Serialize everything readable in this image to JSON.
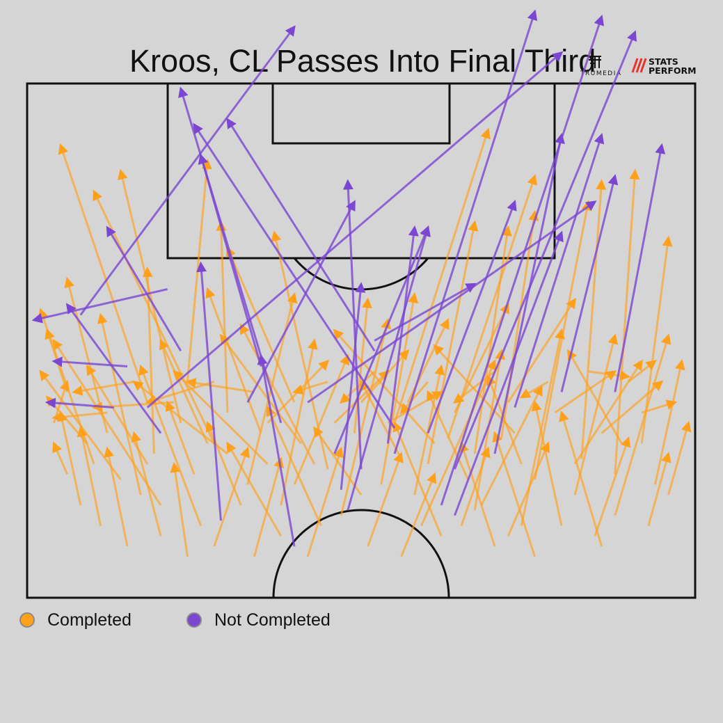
{
  "title": "Kroos, CL Passes Into Final Third",
  "logos": {
    "trumedia": "TRUMEDIA",
    "stats_perform_1": "STATS",
    "stats_perform_2": "PERFORM"
  },
  "colors": {
    "completed": "#ffa01a",
    "not_completed": "#7a46d2",
    "background": "#d5d5d5",
    "lines": "#111111"
  },
  "legend": [
    {
      "label": "Completed",
      "color": "#ffa01a"
    },
    {
      "label": "Not Completed",
      "color": "#7a46d2"
    }
  ],
  "chart_data": {
    "type": "scatter",
    "title": "Kroos, CL Passes Into Final Third",
    "pitch": "half-pitch, attacking half, vertical orientation",
    "series": [
      {
        "name": "Not Completed",
        "passes": [
          [
            18,
            63,
            80,
            -6
          ],
          [
            8,
            45,
            40,
            -11
          ],
          [
            20,
            68,
            6,
            43
          ],
          [
            33,
            62,
            49,
            23
          ],
          [
            42,
            62,
            85,
            23
          ],
          [
            38,
            66,
            23,
            1
          ],
          [
            55,
            72,
            76,
            -14
          ],
          [
            62,
            82,
            86,
            -13
          ],
          [
            64,
            75,
            91,
            -10
          ],
          [
            70,
            72,
            80,
            10
          ],
          [
            55,
            67,
            25,
            8
          ],
          [
            35,
            55,
            26,
            14
          ],
          [
            52,
            52,
            30,
            7
          ],
          [
            29,
            85,
            26,
            35
          ],
          [
            40,
            90,
            35,
            53
          ],
          [
            15,
            55,
            4,
            54
          ],
          [
            13,
            63,
            3,
            62
          ],
          [
            50,
            75,
            48,
            19
          ],
          [
            80,
            60,
            88,
            18
          ],
          [
            88,
            60,
            95,
            12
          ],
          [
            73,
            63,
            86,
            10
          ],
          [
            60,
            68,
            73,
            23
          ],
          [
            54,
            70,
            58,
            28
          ],
          [
            23,
            52,
            12,
            28
          ],
          [
            64,
            84,
            80,
            29
          ],
          [
            47,
            79,
            50,
            39
          ],
          [
            21,
            40,
            1,
            46
          ],
          [
            46,
            72,
            60,
            28
          ],
          [
            52,
            50,
            67,
            39
          ],
          [
            48,
            83,
            60,
            28
          ]
        ]
      },
      {
        "name": "Completed",
        "passes": [
          [
            18,
            62,
            5,
            12
          ],
          [
            23,
            66,
            14,
            17
          ],
          [
            28,
            70,
            10,
            21
          ],
          [
            35,
            68,
            27,
            40
          ],
          [
            40,
            62,
            30,
            32
          ],
          [
            45,
            75,
            37,
            29
          ],
          [
            53,
            78,
            58,
            41
          ],
          [
            60,
            74,
            67,
            27
          ],
          [
            67,
            72,
            72,
            28
          ],
          [
            71,
            69,
            76,
            25
          ],
          [
            76,
            77,
            84,
            23
          ],
          [
            83,
            73,
            86,
            19
          ],
          [
            88,
            76,
            91,
            17
          ],
          [
            92,
            70,
            96,
            30
          ],
          [
            55,
            66,
            69,
            9
          ],
          [
            63,
            69,
            76,
            18
          ],
          [
            30,
            64,
            29,
            27
          ],
          [
            24,
            58,
            27,
            15
          ],
          [
            12,
            68,
            6,
            38
          ],
          [
            10,
            74,
            2,
            44
          ],
          [
            17,
            80,
            11,
            45
          ],
          [
            19,
            72,
            18,
            36
          ],
          [
            33,
            78,
            40,
            41
          ],
          [
            38,
            82,
            43,
            50
          ],
          [
            47,
            84,
            54,
            46
          ],
          [
            58,
            80,
            62,
            55
          ],
          [
            67,
            83,
            71,
            52
          ],
          [
            74,
            86,
            80,
            48
          ],
          [
            82,
            80,
            88,
            49
          ],
          [
            88,
            84,
            96,
            49
          ],
          [
            94,
            78,
            98,
            54
          ],
          [
            26,
            86,
            17,
            55
          ],
          [
            20,
            82,
            4,
            50
          ],
          [
            14,
            77,
            2,
            56
          ],
          [
            9,
            70,
            3,
            61
          ],
          [
            12,
            64,
            4,
            65
          ],
          [
            30,
            72,
            16,
            58
          ],
          [
            36,
            74,
            22,
            56
          ],
          [
            41,
            70,
            29,
            49
          ],
          [
            49,
            68,
            51,
            42
          ],
          [
            57,
            62,
            63,
            46
          ],
          [
            64,
            64,
            72,
            43
          ],
          [
            72,
            62,
            82,
            42
          ],
          [
            79,
            64,
            88,
            56
          ],
          [
            86,
            68,
            95,
            58
          ],
          [
            92,
            64,
            97,
            62
          ],
          [
            16,
            58,
            7,
            60
          ],
          [
            22,
            62,
            10,
            63
          ],
          [
            28,
            58,
            18,
            62
          ],
          [
            34,
            60,
            24,
            58
          ],
          [
            45,
            58,
            40,
            60
          ],
          [
            52,
            56,
            47,
            62
          ],
          [
            60,
            58,
            56,
            64
          ],
          [
            70,
            56,
            64,
            62
          ],
          [
            78,
            58,
            74,
            61
          ],
          [
            84,
            56,
            90,
            57
          ],
          [
            90,
            58,
            94,
            54
          ],
          [
            6,
            60,
            3,
            48
          ],
          [
            4,
            66,
            6,
            58
          ],
          [
            50,
            80,
            43,
            67
          ],
          [
            44,
            86,
            36,
            63
          ],
          [
            38,
            88,
            30,
            70
          ],
          [
            62,
            88,
            55,
            66
          ],
          [
            70,
            90,
            65,
            70
          ],
          [
            80,
            86,
            76,
            62
          ],
          [
            86,
            90,
            80,
            64
          ],
          [
            25,
            76,
            21,
            62
          ],
          [
            32,
            82,
            27,
            66
          ],
          [
            56,
            73,
            50,
            58
          ],
          [
            66,
            77,
            60,
            60
          ],
          [
            74,
            74,
            69,
            57
          ],
          [
            82,
            74,
            92,
            54
          ],
          [
            46,
            66,
            54,
            56
          ],
          [
            40,
            78,
            48,
            53
          ],
          [
            36,
            66,
            45,
            54
          ],
          [
            59,
            86,
            70,
            54
          ],
          [
            68,
            82,
            77,
            59
          ],
          [
            76,
            92,
            70,
            68
          ],
          [
            8,
            82,
            5,
            64
          ],
          [
            11,
            86,
            8,
            67
          ],
          [
            15,
            90,
            12,
            71
          ],
          [
            20,
            88,
            16,
            68
          ],
          [
            24,
            92,
            22,
            74
          ],
          [
            28,
            90,
            33,
            71
          ],
          [
            34,
            92,
            38,
            73
          ],
          [
            42,
            92,
            47,
            71
          ],
          [
            51,
            90,
            56,
            72
          ],
          [
            56,
            92,
            61,
            76
          ],
          [
            65,
            86,
            69,
            71
          ],
          [
            72,
            88,
            78,
            70
          ],
          [
            85,
            88,
            90,
            69
          ],
          [
            93,
            86,
            96,
            72
          ],
          [
            18,
            74,
            9,
            55
          ],
          [
            27,
            70,
            20,
            50
          ],
          [
            43,
            74,
            32,
            47
          ],
          [
            61,
            70,
            46,
            48
          ],
          [
            73,
            68,
            61,
            51
          ],
          [
            89,
            70,
            81,
            52
          ],
          [
            6,
            76,
            4,
            70
          ],
          [
            96,
            80,
            99,
            66
          ],
          [
            50,
            62,
            57,
            52
          ],
          [
            54,
            66,
            62,
            60
          ]
        ]
      }
    ]
  }
}
